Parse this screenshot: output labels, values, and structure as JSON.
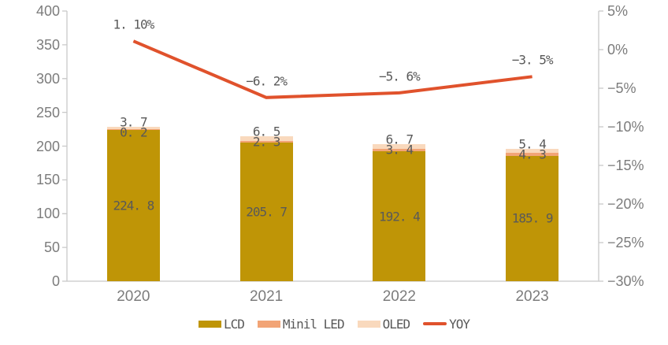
{
  "chart_data": {
    "type": "bar",
    "subtype": "stacked-column-with-line-overlay",
    "categories": [
      "2020",
      "2021",
      "2022",
      "2023"
    ],
    "series": [
      {
        "name": "LCD",
        "chart": "bar",
        "axis": "left",
        "color": "#BF9506",
        "values": [
          224.8,
          205.7,
          192.4,
          185.9
        ],
        "labels": [
          "224. 8",
          "205. 7",
          "192. 4",
          "185. 9"
        ]
      },
      {
        "name": "Minil LED",
        "chart": "bar",
        "axis": "left",
        "color": "#F2A476",
        "values": [
          0.2,
          2.3,
          3.4,
          4.3
        ],
        "labels": [
          "0. 2",
          "2. 3",
          "3. 4",
          "4. 3"
        ]
      },
      {
        "name": "OLED",
        "chart": "bar",
        "axis": "left",
        "color": "#F9D9BD",
        "values": [
          3.7,
          6.5,
          6.7,
          5.4
        ],
        "labels": [
          "3. 7",
          "6. 5",
          "6. 7",
          "5. 4"
        ]
      },
      {
        "name": "YOY",
        "chart": "line",
        "axis": "right",
        "color": "#E0522C",
        "values": [
          1.1,
          -6.2,
          -5.6,
          -3.5
        ],
        "labels": [
          "1. 10%",
          "−6. 2%",
          "−5. 6%",
          "−3. 5%"
        ]
      }
    ],
    "left_axis": {
      "min": 0,
      "max": 400,
      "step": 50,
      "tick_labels": [
        "400",
        "350",
        "300",
        "250",
        "200",
        "150",
        "100",
        "50",
        "0"
      ]
    },
    "right_axis": {
      "min": -30,
      "max": 5,
      "step": 5,
      "tick_labels": [
        "5%",
        "0%",
        "−5%",
        "−10%",
        "−15%",
        "−20%",
        "−25%",
        "−30%"
      ]
    },
    "legend": {
      "position": "bottom",
      "entries": [
        "LCD",
        "Minil LED",
        "OLED",
        "YOY"
      ]
    },
    "grid": false
  },
  "style": {
    "background": "#FFFFFF",
    "axis_line_color": "#C8C8C8",
    "tick_label_color": "#7C7C7C",
    "data_label_color": "#595959"
  }
}
